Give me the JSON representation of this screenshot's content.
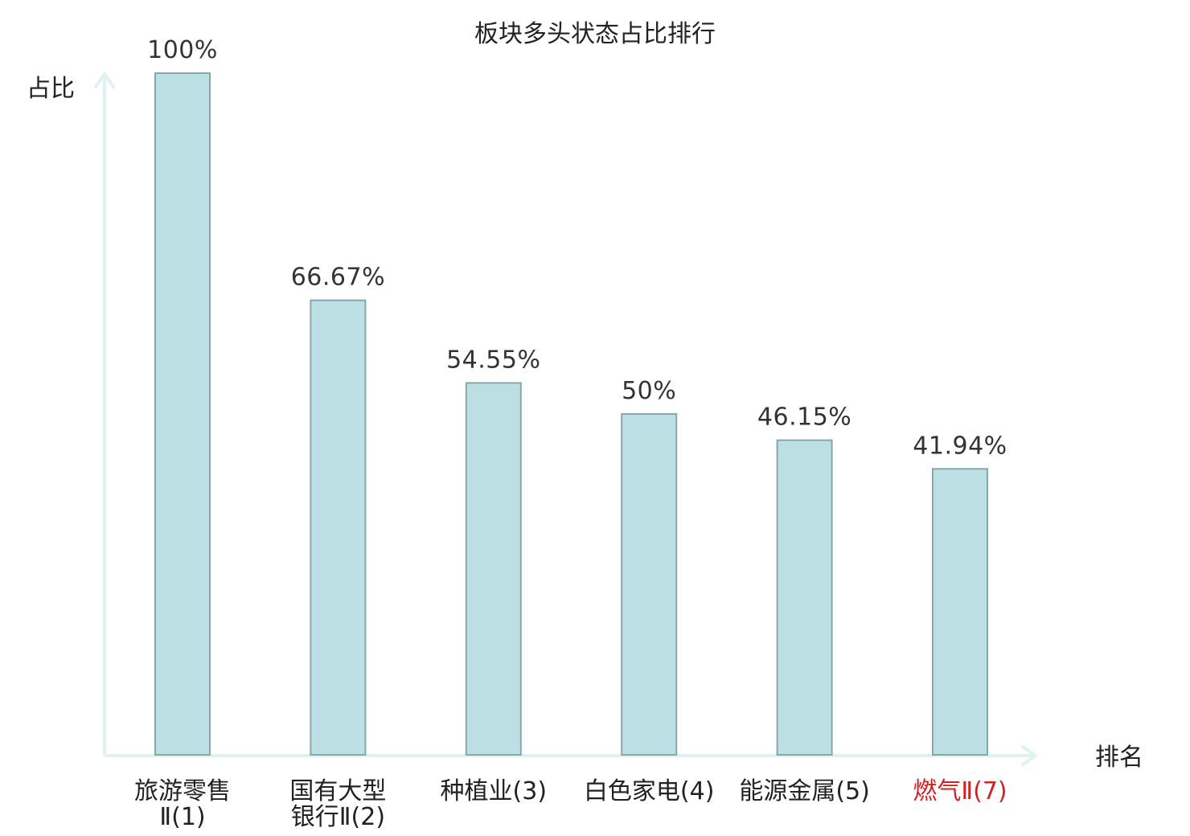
{
  "chart_data": {
    "type": "bar",
    "title": "板块多头状态占比排行",
    "ylabel": "占比",
    "xlabel": "排名",
    "ylim": [
      0,
      100
    ],
    "grid": false,
    "legend": "none",
    "categories": [
      {
        "lines": [
          "旅游零售",
          "Ⅱ(1)"
        ],
        "highlight": false
      },
      {
        "lines": [
          "国有大型",
          "银行Ⅱ(2)"
        ],
        "highlight": false
      },
      {
        "lines": [
          "种植业(3)"
        ],
        "highlight": false
      },
      {
        "lines": [
          "白色家电(4)"
        ],
        "highlight": false
      },
      {
        "lines": [
          "能源金属(5)"
        ],
        "highlight": false
      },
      {
        "lines": [
          "燃气Ⅱ(7)"
        ],
        "highlight": true
      }
    ],
    "values": [
      100,
      66.67,
      54.55,
      50,
      46.15,
      41.94
    ],
    "value_labels": [
      "100%",
      "66.67%",
      "54.55%",
      "50%",
      "46.15%",
      "41.94%"
    ],
    "colors": {
      "bar_fill": "#bce0e3",
      "bar_stroke": "#86a8ac",
      "axis": "#dff2ef",
      "label": "#222222",
      "highlight_label": "#d42020"
    }
  }
}
